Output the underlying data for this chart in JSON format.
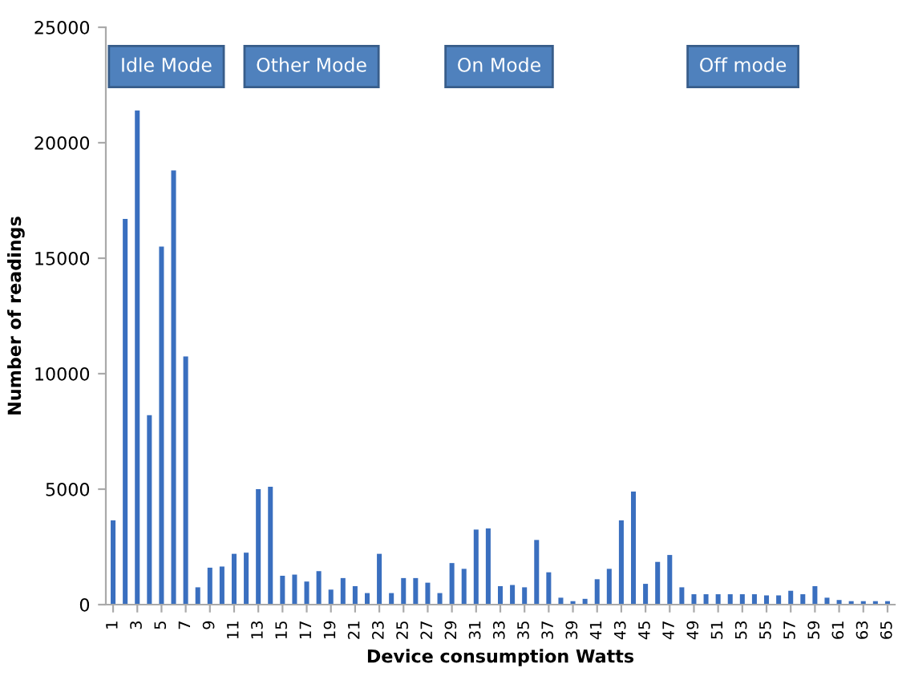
{
  "chart_data": {
    "type": "bar",
    "xlabel": "Device consumption Watts",
    "ylabel": "Number of readings",
    "categories": [
      "1",
      null,
      "3",
      null,
      "5",
      null,
      "7",
      null,
      "9",
      null,
      "11",
      null,
      "13",
      null,
      "15",
      null,
      "17",
      null,
      "19",
      null,
      "21",
      null,
      "23",
      null,
      "25",
      null,
      "27",
      null,
      "29",
      null,
      "31",
      null,
      "33",
      null,
      "35",
      null,
      "37",
      null,
      "39",
      null,
      "41",
      null,
      "43",
      null,
      "45",
      null,
      "47",
      null,
      "49",
      null,
      "51",
      null,
      "53",
      null,
      "55",
      null,
      "57",
      null,
      "59",
      null,
      "61",
      null,
      "63",
      null,
      "65"
    ],
    "values": [
      3650,
      16700,
      21400,
      8200,
      15500,
      18800,
      10750,
      750,
      1600,
      1650,
      2200,
      2250,
      5000,
      5100,
      1250,
      1300,
      1000,
      1450,
      650,
      1150,
      800,
      500,
      2200,
      500,
      1150,
      1150,
      950,
      500,
      1800,
      1550,
      3250,
      3300,
      800,
      850,
      750,
      2800,
      1400,
      300,
      150,
      250,
      1100,
      1550,
      3650,
      4900,
      900,
      1850,
      2150,
      750,
      450,
      450,
      450,
      450,
      450,
      450,
      400,
      400,
      600,
      450,
      800,
      300,
      200,
      150,
      150,
      150,
      150
    ],
    "color": "#3a6fbf",
    "ylim": [
      0,
      25000
    ],
    "yticks": [
      0,
      5000,
      10000,
      15000,
      20000,
      25000
    ],
    "grid": false,
    "legend": false,
    "annotations": [
      "Idle Mode",
      "Other Mode",
      "On Mode",
      "Off mode"
    ]
  }
}
